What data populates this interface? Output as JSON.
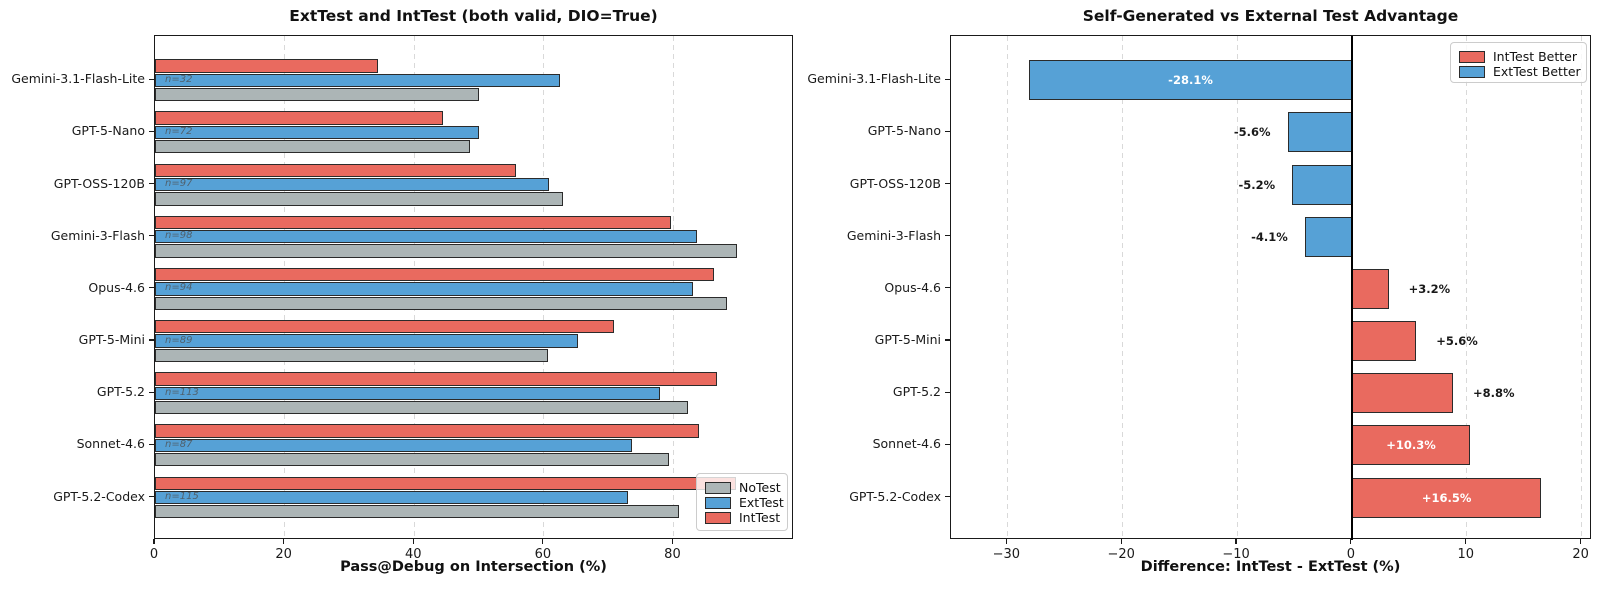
{
  "colors": {
    "int_test": "#E96A5F",
    "ext_test": "#56A1D6",
    "no_test": "#ACB5B6",
    "bar_edge": "#2b2b2b",
    "grid": "#d9d9d9",
    "spine": "#1a1a1a",
    "n_label": "#50616d",
    "label_inside": "#ffffff",
    "label_outside": "#1a1a1a"
  },
  "chart_data": [
    {
      "type": "bar",
      "orientation": "horizontal",
      "title": "ExtTest and IntTest (both valid, DIO=True)",
      "xlabel": "Pass@Debug on Intersection (%)",
      "xlim": [
        0,
        98.6
      ],
      "xticks": [
        0,
        20,
        40,
        60,
        80
      ],
      "xtick_labels": [
        "0",
        "20",
        "40",
        "60",
        "80"
      ],
      "grid": true,
      "categories": [
        "Gemini-3.1-Flash-Lite",
        "GPT-5-Nano",
        "GPT-OSS-120B",
        "Gemini-3-Flash",
        "Opus-4.6",
        "GPT-5-Mini",
        "GPT-5.2",
        "Sonnet-4.6",
        "GPT-5.2-Codex"
      ],
      "n_labels": [
        "n=32",
        "n=72",
        "n=97",
        "n=98",
        "n=94",
        "n=89",
        "n=113",
        "n=87",
        "n=115"
      ],
      "series": [
        {
          "name": "IntTest",
          "color_key": "int_test",
          "values": [
            34.4,
            44.4,
            55.7,
            79.6,
            86.2,
            70.8,
            86.7,
            83.9,
            89.6
          ]
        },
        {
          "name": "ExtTest",
          "color_key": "ext_test",
          "values": [
            62.5,
            50.0,
            60.8,
            83.7,
            83.0,
            65.2,
            77.9,
            73.6,
            73.0
          ]
        },
        {
          "name": "NoTest",
          "color_key": "no_test",
          "values": [
            50.0,
            48.6,
            62.9,
            89.8,
            88.3,
            60.7,
            82.3,
            79.3,
            80.9
          ]
        }
      ],
      "legend": {
        "position": "lower right",
        "entries": [
          {
            "label": "NoTest",
            "color_key": "no_test"
          },
          {
            "label": "ExtTest",
            "color_key": "ext_test"
          },
          {
            "label": "IntTest",
            "color_key": "int_test"
          }
        ]
      }
    },
    {
      "type": "bar",
      "orientation": "horizontal",
      "title": "Self-Generated vs External Test Advantage",
      "xlabel": "Difference: IntTest - ExtTest (%)",
      "xlim": [
        -34.9,
        20.9
      ],
      "xticks": [
        -30,
        -20,
        -10,
        0,
        10,
        20
      ],
      "xtick_labels": [
        "−30",
        "−20",
        "−10",
        "0",
        "10",
        "20"
      ],
      "grid": true,
      "zero_line": true,
      "categories": [
        "Gemini-3.1-Flash-Lite",
        "GPT-5-Nano",
        "GPT-OSS-120B",
        "Gemini-3-Flash",
        "Opus-4.6",
        "GPT-5-Mini",
        "GPT-5.2",
        "Sonnet-4.6",
        "GPT-5.2-Codex"
      ],
      "values": [
        -28.1,
        -5.6,
        -5.2,
        -4.1,
        3.2,
        5.6,
        8.8,
        10.3,
        16.5
      ],
      "bar_labels": [
        "-28.1%",
        "-5.6%",
        "-5.2%",
        "-4.1%",
        "+3.2%",
        "+5.6%",
        "+8.8%",
        "+10.3%",
        "+16.5%"
      ],
      "label_inside": [
        true,
        false,
        false,
        false,
        false,
        false,
        false,
        true,
        true
      ],
      "positive_color_key": "int_test",
      "negative_color_key": "ext_test",
      "legend": {
        "position": "upper right",
        "entries": [
          {
            "label": "IntTest Better",
            "color_key": "int_test"
          },
          {
            "label": "ExtTest Better",
            "color_key": "ext_test"
          }
        ]
      }
    }
  ]
}
